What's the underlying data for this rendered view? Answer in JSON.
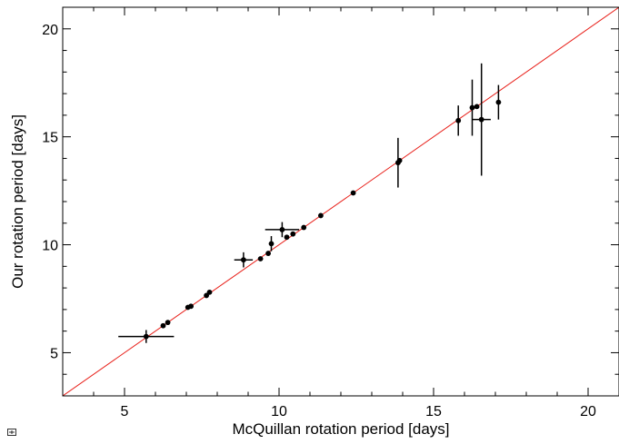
{
  "chart_data": {
    "type": "scatter",
    "title": "",
    "xlabel": "McQuillan rotation period [days]",
    "ylabel": "Our rotation period [days]",
    "xlim": [
      3,
      21
    ],
    "ylim": [
      3,
      21
    ],
    "xticks": [
      5,
      10,
      15,
      20
    ],
    "yticks": [
      5,
      10,
      15,
      20
    ],
    "xtick_labels": [
      "5",
      "10",
      "15",
      "20"
    ],
    "ytick_labels": [
      "5",
      "10",
      "15",
      "20"
    ],
    "grid": false,
    "legend": "none",
    "reference_line": {
      "kind": "one-to-one",
      "color": "#e8201a"
    },
    "marker_color": "#000000",
    "series": [
      {
        "points": [
          {
            "x": 5.7,
            "y": 5.75,
            "xerr": 0.9,
            "yerr": 0.3
          },
          {
            "x": 6.25,
            "y": 6.25
          },
          {
            "x": 6.4,
            "y": 6.4
          },
          {
            "x": 7.05,
            "y": 7.1
          },
          {
            "x": 7.15,
            "y": 7.15
          },
          {
            "x": 7.65,
            "y": 7.65
          },
          {
            "x": 7.75,
            "y": 7.8
          },
          {
            "x": 8.85,
            "y": 9.3,
            "xerr": 0.3,
            "yerr": 0.35
          },
          {
            "x": 9.4,
            "y": 9.35
          },
          {
            "x": 9.65,
            "y": 9.6
          },
          {
            "x": 9.75,
            "y": 10.05,
            "yerr": 0.35
          },
          {
            "x": 10.1,
            "y": 10.7,
            "xerr": 0.55,
            "yerr": 0.35
          },
          {
            "x": 10.25,
            "y": 10.35
          },
          {
            "x": 10.45,
            "y": 10.5
          },
          {
            "x": 10.8,
            "y": 10.8
          },
          {
            "x": 11.35,
            "y": 11.35
          },
          {
            "x": 12.4,
            "y": 12.4
          },
          {
            "x": 13.85,
            "y": 13.8,
            "yerr": 1.15
          },
          {
            "x": 13.9,
            "y": 13.9
          },
          {
            "x": 15.8,
            "y": 15.75,
            "yerr": 0.7
          },
          {
            "x": 16.25,
            "y": 16.35,
            "yerr": 1.3
          },
          {
            "x": 16.4,
            "y": 16.4
          },
          {
            "x": 16.55,
            "y": 15.8,
            "xerr": 0.3,
            "yerr": 2.6
          },
          {
            "x": 17.1,
            "y": 16.6,
            "yerr": 0.8
          }
        ]
      }
    ]
  }
}
